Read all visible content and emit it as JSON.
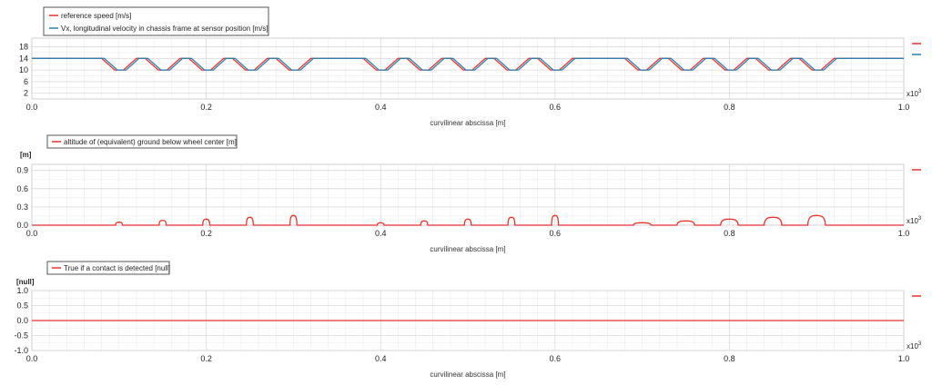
{
  "colors": {
    "red": "#e8332c",
    "blue": "#2e7fb0",
    "grid_major": "#d8d8d8",
    "grid_minor": "#ebebeb"
  },
  "chart_data": [
    {
      "type": "line",
      "unit": "",
      "multiplier": "x10",
      "multiplier_exp": "3",
      "xlabel": "curvilinear abscissa [m]",
      "xlim": [
        0,
        1.0
      ],
      "ylim": [
        0,
        21
      ],
      "xticks": [
        "0.0",
        "0.2",
        "0.4",
        "0.6",
        "0.8",
        "1.0"
      ],
      "xtick_values": [
        0,
        0.2,
        0.4,
        0.6,
        0.8,
        1.0
      ],
      "yticks": [
        "18",
        "14",
        "10",
        "6",
        "2"
      ],
      "ytick_values": [
        18,
        14,
        10,
        6,
        2
      ],
      "legend": [
        {
          "label": "reference speed [m/s]",
          "color": "#e8332c"
        },
        {
          "label": "Vx, longitudinal velocity in chassis frame at sensor position [m/s]",
          "color": "#2e7fb0"
        }
      ],
      "series": [
        {
          "name": "reference speed [m/s]",
          "color": "#e8332c",
          "x": [
            0,
            0.08,
            0.095,
            0.105,
            0.12,
            0.13,
            0.145,
            0.155,
            0.17,
            0.18,
            0.195,
            0.205,
            0.22,
            0.23,
            0.245,
            0.255,
            0.27,
            0.28,
            0.295,
            0.305,
            0.32,
            0.38,
            0.395,
            0.405,
            0.42,
            0.43,
            0.445,
            0.455,
            0.47,
            0.48,
            0.495,
            0.505,
            0.52,
            0.53,
            0.545,
            0.555,
            0.57,
            0.58,
            0.595,
            0.605,
            0.62,
            0.68,
            0.695,
            0.705,
            0.72,
            0.73,
            0.745,
            0.755,
            0.77,
            0.78,
            0.795,
            0.805,
            0.82,
            0.83,
            0.845,
            0.855,
            0.87,
            0.88,
            0.895,
            0.905,
            0.92,
            1.0
          ],
          "y": [
            14,
            14,
            10,
            10,
            14,
            14,
            10,
            10,
            14,
            14,
            10,
            10,
            14,
            14,
            10,
            10,
            14,
            14,
            10,
            10,
            14,
            14,
            10,
            10,
            14,
            14,
            10,
            10,
            14,
            14,
            10,
            10,
            14,
            14,
            10,
            10,
            14,
            14,
            10,
            10,
            14,
            14,
            10,
            10,
            14,
            14,
            10,
            10,
            14,
            14,
            10,
            10,
            14,
            14,
            10,
            10,
            14,
            14,
            10,
            10,
            14,
            14
          ]
        },
        {
          "name": "Vx, longitudinal velocity in chassis frame at sensor position [m/s]",
          "color": "#2e7fb0",
          "x": [
            0,
            0.083,
            0.098,
            0.108,
            0.123,
            0.133,
            0.148,
            0.158,
            0.173,
            0.183,
            0.198,
            0.208,
            0.223,
            0.233,
            0.248,
            0.258,
            0.273,
            0.283,
            0.298,
            0.308,
            0.323,
            0.383,
            0.398,
            0.408,
            0.423,
            0.433,
            0.448,
            0.458,
            0.473,
            0.483,
            0.498,
            0.508,
            0.523,
            0.533,
            0.548,
            0.558,
            0.573,
            0.583,
            0.598,
            0.608,
            0.623,
            0.683,
            0.698,
            0.708,
            0.723,
            0.733,
            0.748,
            0.758,
            0.773,
            0.783,
            0.798,
            0.808,
            0.823,
            0.833,
            0.848,
            0.858,
            0.873,
            0.883,
            0.898,
            0.908,
            0.923,
            1.0
          ],
          "y": [
            14,
            14,
            10,
            10,
            14,
            14,
            10,
            10,
            14,
            14,
            10,
            10,
            14,
            14,
            10,
            10,
            14,
            14,
            10,
            10,
            14,
            14,
            10,
            10,
            14,
            14,
            10,
            10,
            14,
            14,
            10,
            10,
            14,
            14,
            10,
            10,
            14,
            14,
            10,
            10,
            14,
            14,
            10,
            10,
            14,
            14,
            10,
            10,
            14,
            14,
            10,
            10,
            14,
            14,
            10,
            10,
            14,
            14,
            10,
            10,
            14,
            14
          ]
        }
      ]
    },
    {
      "type": "line",
      "unit": "[m]",
      "multiplier": "x10",
      "multiplier_exp": "3",
      "xlabel": "curvilinear abscissa [m]",
      "xlim": [
        0,
        1.0
      ],
      "ylim": [
        0,
        1.0
      ],
      "xticks": [
        "0.0",
        "0.2",
        "0.4",
        "0.6",
        "0.8",
        "1.0"
      ],
      "xtick_values": [
        0,
        0.2,
        0.4,
        0.6,
        0.8,
        1.0
      ],
      "yticks": [
        "0.9",
        "0.6",
        "0.3",
        "0.0"
      ],
      "ytick_values": [
        0.9,
        0.6,
        0.3,
        0.0
      ],
      "legend": [
        {
          "label": "altitude of (equivalent) ground below wheel center [m]",
          "color": "#e8332c"
        }
      ],
      "bumps": [
        {
          "x": 0.1,
          "height": 0.05,
          "width": 0.004
        },
        {
          "x": 0.15,
          "height": 0.08,
          "width": 0.004
        },
        {
          "x": 0.2,
          "height": 0.1,
          "width": 0.004
        },
        {
          "x": 0.25,
          "height": 0.13,
          "width": 0.004
        },
        {
          "x": 0.3,
          "height": 0.16,
          "width": 0.004
        },
        {
          "x": 0.4,
          "height": 0.04,
          "width": 0.004
        },
        {
          "x": 0.45,
          "height": 0.07,
          "width": 0.004
        },
        {
          "x": 0.5,
          "height": 0.1,
          "width": 0.004
        },
        {
          "x": 0.55,
          "height": 0.13,
          "width": 0.004
        },
        {
          "x": 0.6,
          "height": 0.16,
          "width": 0.004
        },
        {
          "x": 0.7,
          "height": 0.04,
          "width": 0.01
        },
        {
          "x": 0.75,
          "height": 0.07,
          "width": 0.01
        },
        {
          "x": 0.8,
          "height": 0.1,
          "width": 0.01
        },
        {
          "x": 0.85,
          "height": 0.13,
          "width": 0.01
        },
        {
          "x": 0.9,
          "height": 0.16,
          "width": 0.01
        }
      ]
    },
    {
      "type": "line",
      "unit": "[null]",
      "multiplier": "x10",
      "multiplier_exp": "3",
      "xlabel": "curvilinear abscissa [m]",
      "xlim": [
        0,
        1.0
      ],
      "ylim": [
        -1.0,
        1.0
      ],
      "xticks": [
        "0.0",
        "0.2",
        "0.4",
        "0.6",
        "0.8",
        "1.0"
      ],
      "xtick_values": [
        0,
        0.2,
        0.4,
        0.6,
        0.8,
        1.0
      ],
      "yticks": [
        "1.0",
        "0.5",
        "0.0",
        "-0.5",
        "-1.0"
      ],
      "ytick_values": [
        1.0,
        0.5,
        0.0,
        -0.5,
        -1.0
      ],
      "legend": [
        {
          "label": "True if a contact is detected [null]",
          "color": "#e8332c"
        }
      ],
      "series": [
        {
          "name": "True if a contact is detected [null]",
          "color": "#e8332c",
          "x": [
            0,
            1.0
          ],
          "y": [
            0,
            0
          ]
        }
      ]
    }
  ]
}
